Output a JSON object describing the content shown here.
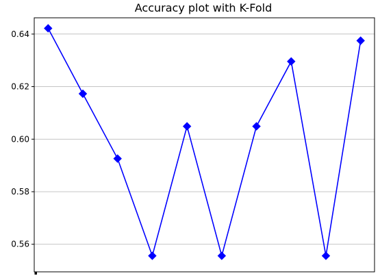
{
  "chart_data": {
    "type": "line",
    "title": "Accuracy plot with K-Fold",
    "xlabel": "",
    "ylabel": "",
    "x": [
      1,
      2,
      3,
      4,
      5,
      6,
      7,
      8,
      9,
      10
    ],
    "series": [
      {
        "values": [
          0.6422,
          0.6173,
          0.5926,
          0.5556,
          0.6049,
          0.5556,
          0.6049,
          0.6296,
          0.5556,
          0.6375
        ],
        "color": "#0000ff",
        "marker": "diamond"
      }
    ],
    "xlim": [
      0.6,
      10.4
    ],
    "ylim": [
      0.5495,
      0.6462
    ],
    "yticks": [
      0.56,
      0.58,
      0.6,
      0.62,
      0.64
    ],
    "ytick_labels": [
      "0.56",
      "0.58",
      "0.60",
      "0.62",
      "0.64"
    ],
    "grid": "horizontal",
    "grid_color": "#b0b0b0",
    "x_tick_labels_visible": false
  }
}
